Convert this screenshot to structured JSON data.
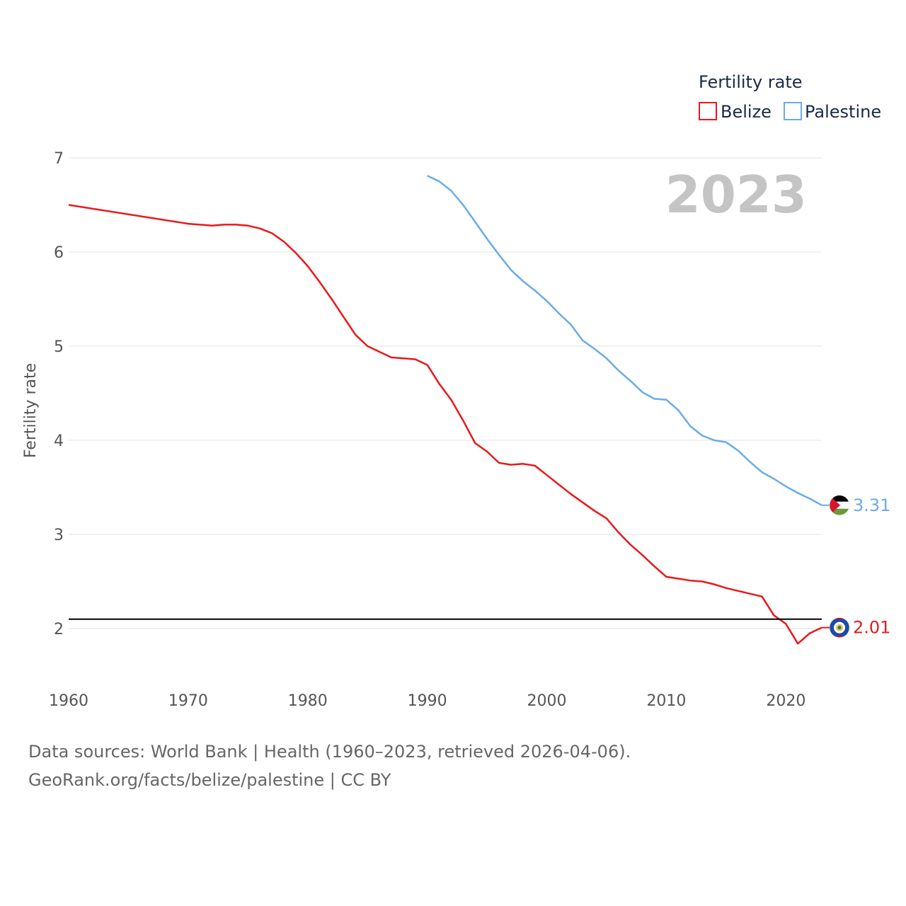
{
  "chart_data": {
    "type": "line",
    "ylabel": "Fertility rate",
    "xlim": [
      1960,
      2023
    ],
    "ylim": [
      1.5,
      7
    ],
    "yticks": [
      2,
      3,
      4,
      5,
      6,
      7
    ],
    "xticks": [
      1960,
      1970,
      1980,
      1990,
      2000,
      2010,
      2020
    ],
    "legend_title": "Fertility rate",
    "year_label": "2023",
    "reference_line": {
      "y": 2.1,
      "color": "#000000"
    },
    "series": [
      {
        "name": "Belize",
        "color": "#e8191c",
        "end_value_label": "2.01",
        "flag": "belize-flag",
        "x": [
          1960,
          1970,
          1972,
          1973,
          1974,
          1975,
          1976,
          1977,
          1978,
          1979,
          1980,
          1981,
          1982,
          1983,
          1984,
          1985,
          1986,
          1987,
          1988,
          1989,
          1990,
          1991,
          1992,
          1993,
          1994,
          1995,
          1996,
          1997,
          1998,
          1999,
          2000,
          2001,
          2002,
          2003,
          2004,
          2005,
          2006,
          2007,
          2008,
          2009,
          2010,
          2011,
          2012,
          2013,
          2014,
          2015,
          2016,
          2017,
          2018,
          2019,
          2020,
          2021,
          2022,
          2023
        ],
        "values": [
          6.5,
          6.3,
          6.28,
          6.29,
          6.29,
          6.28,
          6.25,
          6.2,
          6.11,
          5.99,
          5.85,
          5.68,
          5.5,
          5.31,
          5.12,
          5.0,
          4.94,
          4.88,
          4.87,
          4.86,
          4.8,
          4.6,
          4.43,
          4.21,
          3.97,
          3.88,
          3.76,
          3.74,
          3.75,
          3.73,
          3.63,
          3.53,
          3.43,
          3.34,
          3.25,
          3.17,
          3.02,
          2.89,
          2.78,
          2.66,
          2.55,
          2.53,
          2.51,
          2.5,
          2.47,
          2.43,
          2.4,
          2.37,
          2.34,
          2.14,
          2.05,
          1.84,
          1.95,
          2.01
        ]
      },
      {
        "name": "Palestine",
        "color": "#6aabe8",
        "end_value_label": "3.31",
        "flag": "palestine-flag",
        "x": [
          1990,
          1991,
          1992,
          1993,
          1994,
          1995,
          1996,
          1997,
          1998,
          1999,
          2000,
          2001,
          2002,
          2003,
          2004,
          2005,
          2006,
          2007,
          2008,
          2009,
          2010,
          2011,
          2012,
          2013,
          2014,
          2015,
          2016,
          2017,
          2018,
          2019,
          2020,
          2021,
          2022,
          2023
        ],
        "values": [
          6.81,
          6.75,
          6.65,
          6.5,
          6.32,
          6.14,
          5.97,
          5.81,
          5.69,
          5.59,
          5.48,
          5.35,
          5.23,
          5.06,
          4.97,
          4.87,
          4.74,
          4.63,
          4.51,
          4.44,
          4.43,
          4.32,
          4.15,
          4.05,
          4.0,
          3.98,
          3.89,
          3.77,
          3.66,
          3.59,
          3.51,
          3.44,
          3.38,
          3.31
        ]
      }
    ]
  },
  "footer": {
    "line1": "Data sources: World Bank | Health (1960–2023, retrieved 2026-04-06).",
    "line2": "GeoRank.org/facts/belize/palestine | CC BY"
  }
}
